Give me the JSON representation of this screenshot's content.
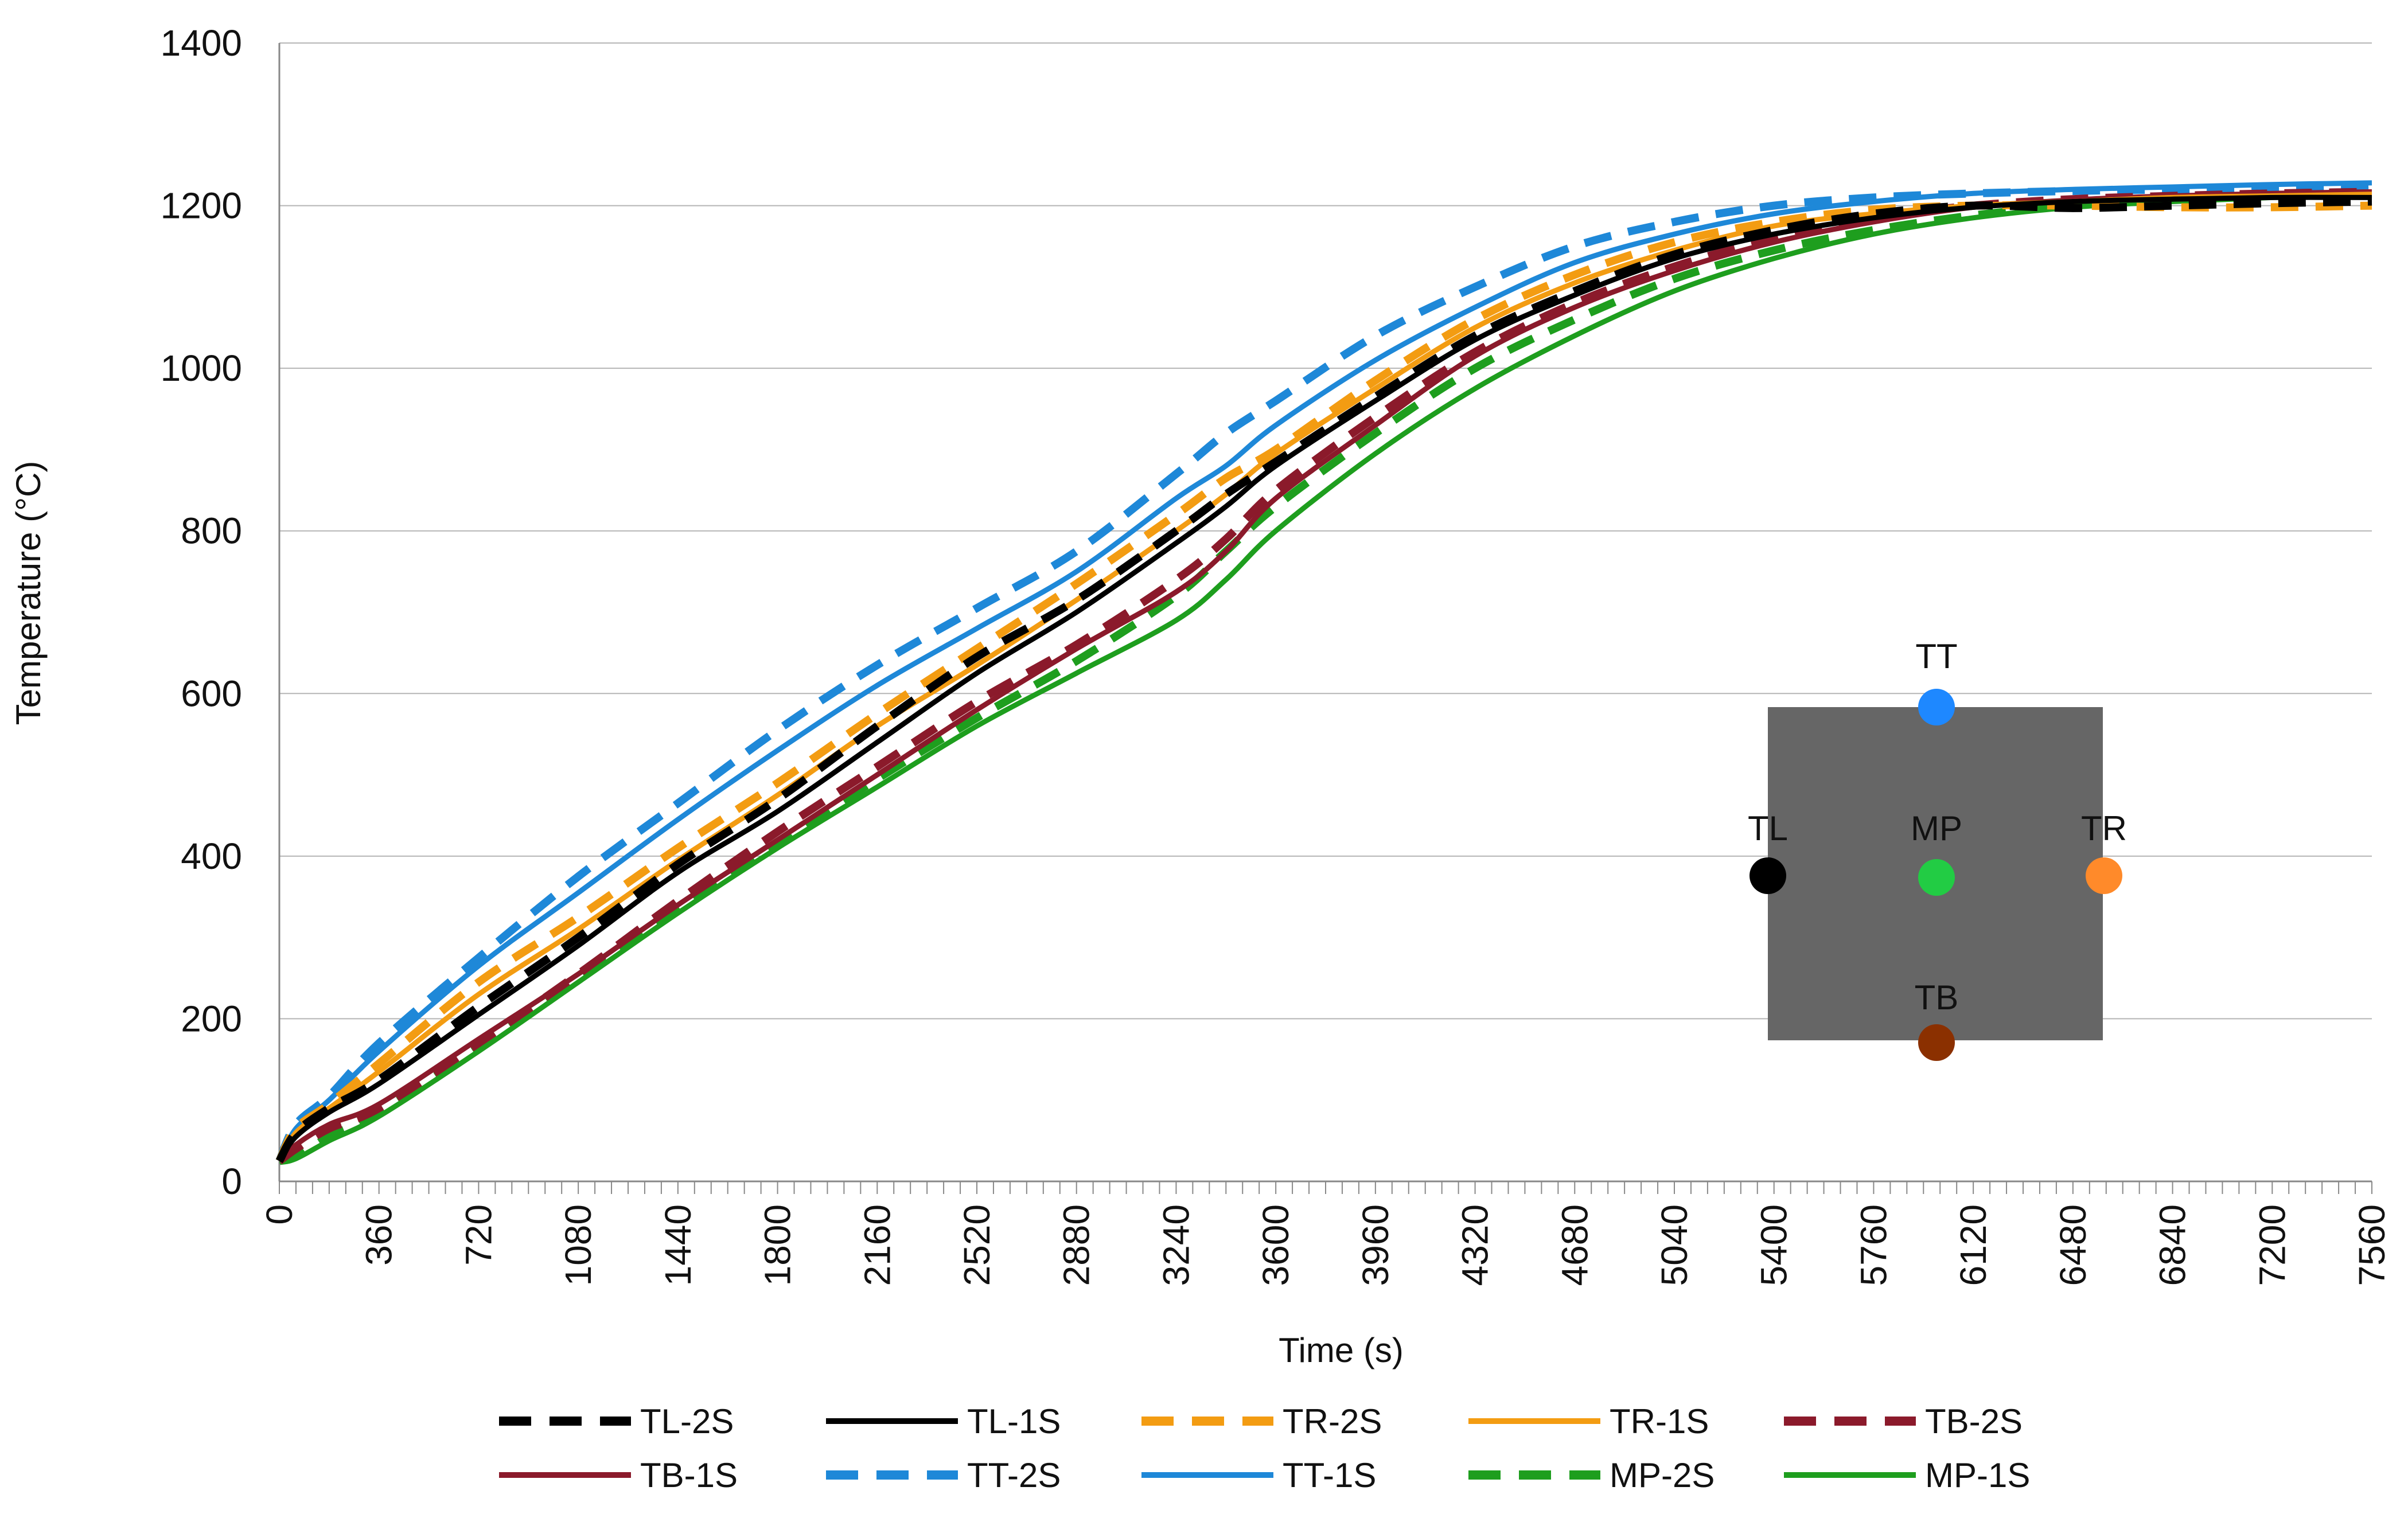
{
  "chart_data": {
    "type": "line",
    "title": "",
    "xlabel": "Time (s)",
    "ylabel": "Temperature (°C)",
    "xlim": [
      0,
      7560
    ],
    "ylim": [
      0,
      1400
    ],
    "grid": true,
    "legend_position": "bottom",
    "x_ticks": [
      0,
      360,
      720,
      1080,
      1440,
      1800,
      2160,
      2520,
      2880,
      3240,
      3600,
      3960,
      4320,
      4680,
      5040,
      5400,
      5760,
      6120,
      6480,
      6840,
      7200,
      7560
    ],
    "x_minor_step": 60,
    "y_ticks": [
      0,
      200,
      400,
      600,
      800,
      1000,
      1200,
      1400
    ],
    "x": [
      0,
      60,
      180,
      360,
      720,
      1080,
      1440,
      1800,
      2160,
      2520,
      2880,
      3240,
      3420,
      3600,
      3960,
      4320,
      4680,
      5040,
      5400,
      5760,
      6120,
      6480,
      6840,
      7200,
      7560
    ],
    "series": [
      {
        "name": "TL-2S",
        "color": "#000000",
        "dash": true,
        "values": [
          25,
          60,
          90,
          125,
          215,
          300,
          390,
          470,
          560,
          645,
          715,
          800,
          845,
          885,
          965,
          1040,
          1095,
          1140,
          1170,
          1190,
          1200,
          1197,
          1200,
          1203,
          1205
        ]
      },
      {
        "name": "TL-1S",
        "color": "#000000",
        "dash": false,
        "values": [
          25,
          55,
          85,
          120,
          205,
          290,
          380,
          455,
          540,
          625,
          700,
          785,
          830,
          880,
          960,
          1035,
          1090,
          1135,
          1165,
          1185,
          1198,
          1205,
          1208,
          1210,
          1210
        ]
      },
      {
        "name": "TR-2S",
        "color": "#F39C12",
        "dash": true,
        "values": [
          25,
          65,
          95,
          145,
          245,
          325,
          410,
          490,
          575,
          655,
          735,
          820,
          865,
          900,
          985,
          1060,
          1115,
          1155,
          1180,
          1195,
          1200,
          1200,
          1198,
          1198,
          1200
        ]
      },
      {
        "name": "TR-1S",
        "color": "#F39C12",
        "dash": false,
        "values": [
          25,
          60,
          90,
          135,
          230,
          310,
          395,
          475,
          560,
          635,
          715,
          800,
          845,
          895,
          975,
          1050,
          1105,
          1145,
          1175,
          1190,
          1200,
          1205,
          1210,
          1212,
          1214
        ]
      },
      {
        "name": "TB-2S",
        "color": "#8B1A2B",
        "dash": true,
        "values": [
          25,
          40,
          65,
          90,
          170,
          255,
          345,
          430,
          510,
          590,
          660,
          740,
          790,
          850,
          940,
          1020,
          1080,
          1125,
          1160,
          1185,
          1200,
          1208,
          1212,
          1215,
          1217
        ]
      },
      {
        "name": "TB-1S",
        "color": "#8B1A2B",
        "dash": false,
        "values": [
          25,
          45,
          70,
          95,
          175,
          255,
          340,
          420,
          500,
          580,
          655,
          725,
          775,
          840,
          930,
          1015,
          1075,
          1120,
          1155,
          1180,
          1198,
          1207,
          1212,
          1215,
          1217
        ]
      },
      {
        "name": "TT-2S",
        "color": "#1E88D8",
        "dash": true,
        "values": [
          25,
          70,
          105,
          170,
          275,
          375,
          465,
          555,
          635,
          705,
          775,
          870,
          920,
          960,
          1040,
          1100,
          1150,
          1180,
          1200,
          1210,
          1215,
          1218,
          1220,
          1222,
          1225
        ]
      },
      {
        "name": "TT-1S",
        "color": "#1E88D8",
        "dash": false,
        "values": [
          25,
          65,
          100,
          160,
          265,
          355,
          445,
          530,
          610,
          680,
          750,
          840,
          880,
          930,
          1010,
          1075,
          1130,
          1165,
          1190,
          1205,
          1215,
          1220,
          1223,
          1226,
          1228
        ]
      },
      {
        "name": "MP-2S",
        "color": "#1E9E1E",
        "dash": true,
        "values": [
          25,
          30,
          55,
          85,
          165,
          250,
          335,
          415,
          495,
          570,
          640,
          720,
          775,
          830,
          920,
          1000,
          1060,
          1110,
          1145,
          1170,
          1188,
          1200,
          1208,
          1212,
          1215
        ]
      },
      {
        "name": "MP-1S",
        "color": "#1E9E1E",
        "dash": false,
        "values": [
          25,
          28,
          50,
          80,
          160,
          245,
          330,
          410,
          485,
          560,
          625,
          690,
          740,
          800,
          895,
          975,
          1040,
          1095,
          1135,
          1165,
          1185,
          1198,
          1205,
          1210,
          1213
        ]
      }
    ],
    "inset": {
      "description_labels": [
        "TT",
        "TL",
        "MP",
        "TR",
        "TB"
      ],
      "markers": [
        {
          "label": "TT",
          "color": "#1E88FF"
        },
        {
          "label": "TL",
          "color": "#000000"
        },
        {
          "label": "MP",
          "color": "#22CC44"
        },
        {
          "label": "TR",
          "color": "#FF8A2A"
        },
        {
          "label": "TB",
          "color": "#8B3000"
        }
      ],
      "box_color": "#666666"
    }
  }
}
